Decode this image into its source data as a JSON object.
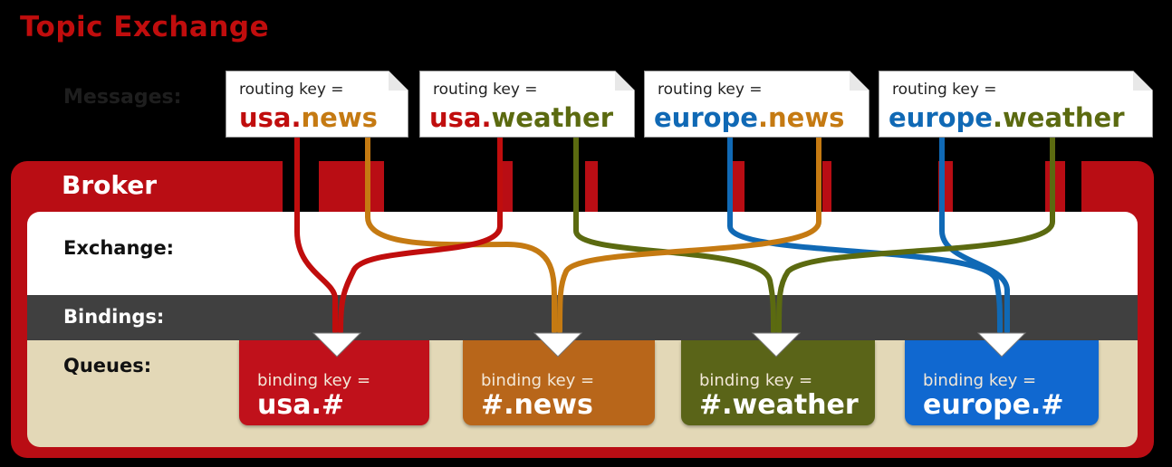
{
  "title": "Topic Exchange",
  "messages_label": "Messages:",
  "broker_label": "Broker",
  "rows": {
    "exchange": "Exchange:",
    "bindings": "Bindings:",
    "queues": "Queues:"
  },
  "colors": {
    "usa": "#c00d0d",
    "news": "#c57a12",
    "weather": "#5b6a10",
    "europe": "#1069b5",
    "queue_usa": "#c0111b",
    "queue_news": "#b8661a",
    "queue_weather": "#5a6418",
    "queue_europe": "#1068d0"
  },
  "messages": [
    {
      "label": "routing key =",
      "part1": "usa",
      "dot": ".",
      "part2": "news"
    },
    {
      "label": "routing key =",
      "part1": "usa",
      "dot": ".",
      "part2": "weather"
    },
    {
      "label": "routing key =",
      "part1": "europe",
      "dot": ".",
      "part2": "news"
    },
    {
      "label": "routing key =",
      "part1": "europe",
      "dot": ".",
      "part2": "weather"
    }
  ],
  "queues": [
    {
      "label": "binding key =",
      "key": "usa.#"
    },
    {
      "label": "binding key =",
      "key": "#.news"
    },
    {
      "label": "binding key =",
      "key": "#.weather"
    },
    {
      "label": "binding key =",
      "key": "europe.#"
    }
  ]
}
